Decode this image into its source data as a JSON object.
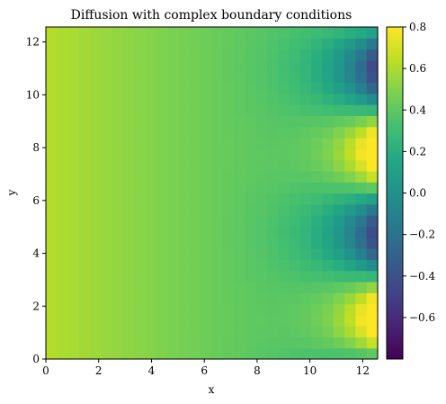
{
  "chart_data": {
    "type": "heatmap",
    "title": "Diffusion with complex boundary conditions",
    "xlabel": "x",
    "ylabel": "y",
    "xlim": [
      0,
      12.566
    ],
    "ylim": [
      0,
      12.566
    ],
    "x_ticks": [
      "0",
      "2",
      "4",
      "6",
      "8",
      "10",
      "12"
    ],
    "y_ticks": [
      "0",
      "2",
      "4",
      "6",
      "8",
      "10",
      "12"
    ],
    "colorbar": {
      "vmin": -0.8,
      "vmax": 0.8,
      "ticks": [
        -0.6,
        -0.4,
        -0.2,
        0.0,
        0.2,
        0.4,
        0.6,
        0.8
      ],
      "tick_labels": [
        "−0.6",
        "−0.4",
        "−0.2",
        "0.0",
        "0.2",
        "0.4",
        "0.6",
        "0.8"
      ],
      "colormap": "viridis"
    },
    "grid": {
      "nx": 30,
      "ny": 30,
      "value_model": "approximate field read from the image: left edge about 0.62 decaying toward about 0.25, plus a sin(y)-shaped boundary signal of amplitude about 0.8 growing near the right edge"
    },
    "grid_lines": false
  }
}
